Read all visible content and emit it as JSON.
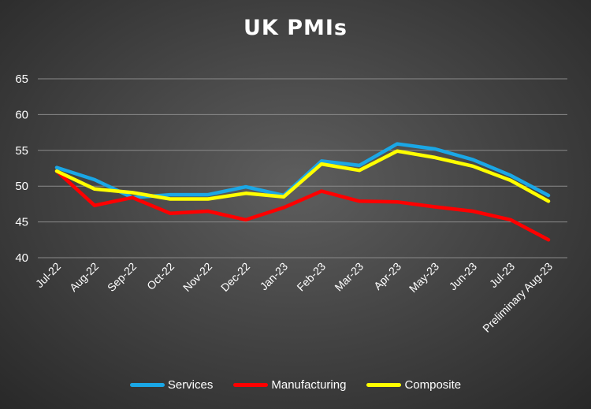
{
  "chart_data": {
    "type": "line",
    "title": "UK PMIs",
    "xlabel": "",
    "ylabel": "",
    "categories": [
      "Jul-22",
      "Aug-22",
      "Sep-22",
      "Oct-22",
      "Nov-22",
      "Dec-22",
      "Jan-23",
      "Feb-23",
      "Mar-23",
      "Apr-23",
      "May-23",
      "Jun-23",
      "Jul-23",
      "Preliminary Aug-23"
    ],
    "ylim": [
      40,
      65
    ],
    "yticks": [
      40,
      45,
      50,
      55,
      60,
      65
    ],
    "grid": true,
    "legend": "bottom",
    "series": [
      {
        "name": "Services",
        "color": "#1aa7e6",
        "values": [
          52.6,
          50.9,
          48.4,
          48.8,
          48.8,
          49.9,
          48.7,
          53.5,
          52.9,
          55.9,
          55.2,
          53.7,
          51.5,
          48.7
        ]
      },
      {
        "name": "Manufacturing",
        "color": "#ff0000",
        "values": [
          52.1,
          47.3,
          48.4,
          46.2,
          46.5,
          45.3,
          47.0,
          49.3,
          47.9,
          47.8,
          47.1,
          46.5,
          45.3,
          42.5
        ]
      },
      {
        "name": "Composite",
        "color": "#ffff00",
        "values": [
          52.1,
          49.6,
          49.1,
          48.2,
          48.2,
          49.0,
          48.5,
          53.1,
          52.2,
          54.9,
          54.0,
          52.8,
          50.8,
          47.9
        ]
      }
    ]
  }
}
